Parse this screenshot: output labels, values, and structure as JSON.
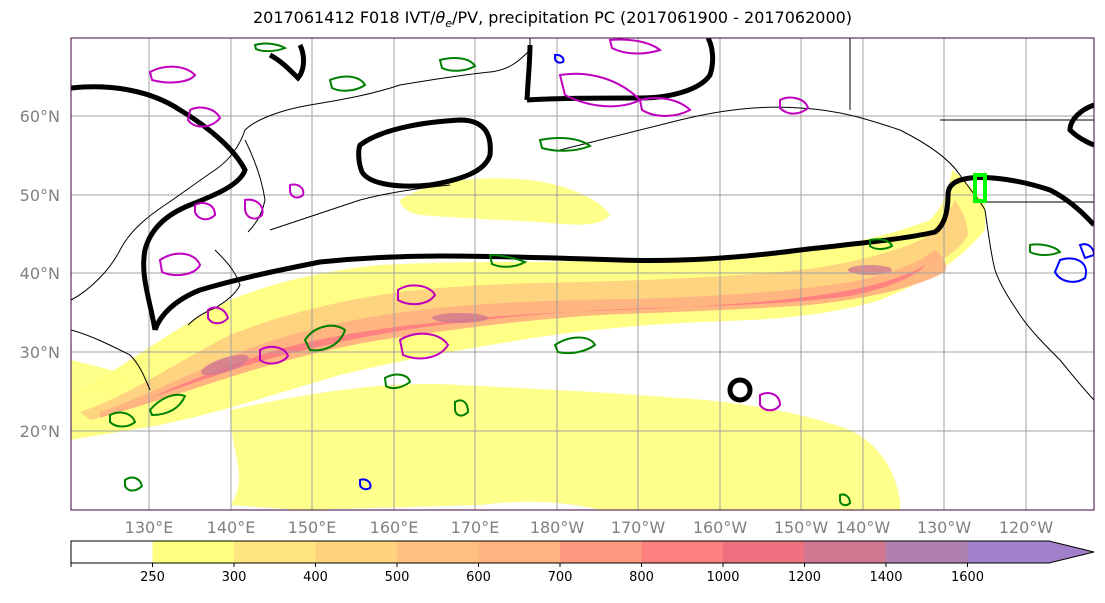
{
  "title": "2017061412 F018 IVT/θe/PV, precipitation PC (2017061900 - 2017062000)",
  "title_parts": {
    "prefix": "2017061412 F018 IVT/",
    "theta": "θ",
    "sub": "e",
    "suffix": "/PV, precipitation PC (2017061900 - 2017062000)"
  },
  "lat_labels": [
    {
      "lat": 60,
      "text": "60°N"
    },
    {
      "lat": 50,
      "text": "50°N"
    },
    {
      "lat": 40,
      "text": "40°N"
    },
    {
      "lat": 30,
      "text": "30°N"
    },
    {
      "lat": 20,
      "text": "20°N"
    }
  ],
  "lon_labels": [
    {
      "lon": 130,
      "text": "130°E"
    },
    {
      "lon": 140,
      "text": "140°E"
    },
    {
      "lon": 150,
      "text": "150°E"
    },
    {
      "lon": 160,
      "text": "160°E"
    },
    {
      "lon": 170,
      "text": "170°E"
    },
    {
      "lon": 180,
      "text": "180°W"
    },
    {
      "lon": 190,
      "text": "170°W"
    },
    {
      "lon": 200,
      "text": "160°W"
    },
    {
      "lon": 210,
      "text": "150°W"
    },
    {
      "lon": 220,
      "text": "140°W"
    },
    {
      "lon": 230,
      "text": "130°W"
    },
    {
      "lon": 240,
      "text": "120°W"
    }
  ],
  "colorbar": {
    "levels": [
      "250",
      "300",
      "400",
      "500",
      "600",
      "700",
      "800",
      "1000",
      "1200",
      "1400",
      "1600"
    ],
    "colors": [
      "#ffffff",
      "#ffff80",
      "#ffe680",
      "#ffd280",
      "#ffbf80",
      "#ffb380",
      "#ff9980",
      "#ff8080",
      "#f07080",
      "#d07890",
      "#b080b0",
      "#a080c8"
    ],
    "extend": "max"
  },
  "colors": {
    "ivt_fill_low": "#ffff80",
    "ivt_fill_high": "#ff7080",
    "theta_contour": "#000000",
    "pv_contour_magenta": "#c000c0",
    "precip_contour_green": "#008000",
    "precip_contour_blue": "#0000ff",
    "highlight_lime": "#00ff00",
    "gridline": "#a0a0a0"
  }
}
